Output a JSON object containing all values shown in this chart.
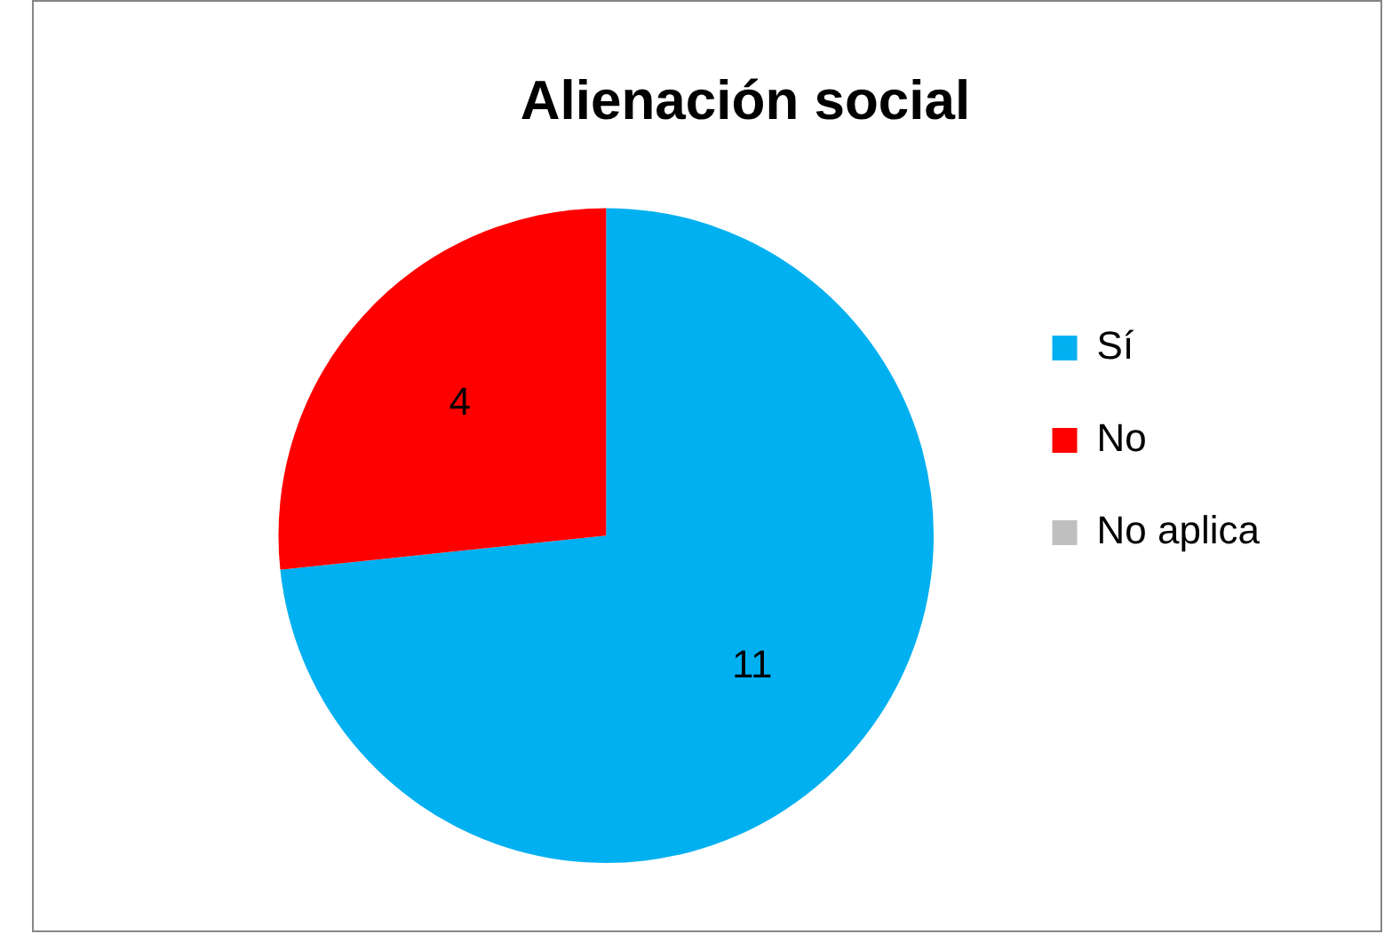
{
  "chart_data": {
    "type": "pie",
    "title": "Alienación social",
    "categories": [
      "Sí",
      "No",
      "No aplica"
    ],
    "values": [
      11,
      4,
      0
    ],
    "colors": [
      "#00b0f0",
      "#ff0000",
      "#bfbfbf"
    ],
    "value_labels": [
      "11",
      "4",
      null
    ],
    "legend": "right"
  }
}
